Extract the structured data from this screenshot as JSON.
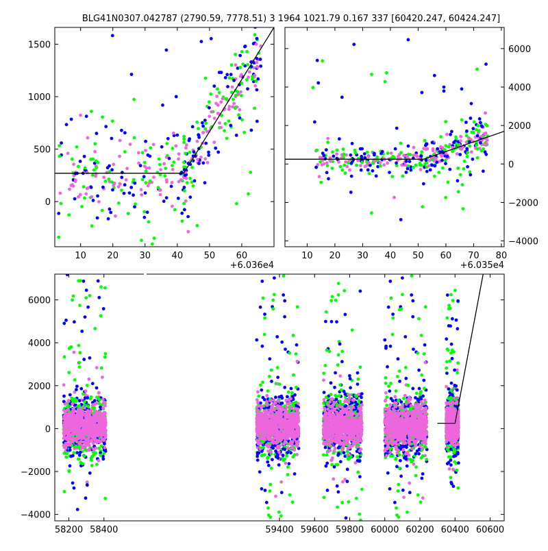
{
  "title": "BLG41N0307.042787 (2790.59, 7778.51)   3 1964 1021.79 0.167 337 [60420.247, 60424.247]",
  "colors": {
    "g": "#00ff00",
    "b": "#0000ff",
    "p": "#ee66dd",
    "model": "#000000"
  },
  "chart_data": [
    {
      "type": "scatter",
      "panel": "top-left",
      "xlim": [
        2,
        70
      ],
      "ylim": [
        -430,
        1660
      ],
      "x_offset_label": "+6.036e4",
      "xticks": [
        10,
        20,
        30,
        40,
        50,
        60
      ],
      "yticks": [
        0,
        500,
        1000,
        1500
      ],
      "ytick_side": "left",
      "model_line": {
        "x": [
          2,
          42,
          70
        ],
        "y": [
          270,
          270,
          1660
        ]
      },
      "scatter_regions": [
        {
          "x": [
            3,
            43
          ],
          "y_center": 230,
          "y_spread": 190,
          "y_outlier_range": [
            -430,
            1600
          ]
        },
        {
          "x": [
            42,
            66
          ],
          "y_trend": [
            [
              42,
              300
            ],
            [
              66,
              1400
            ]
          ],
          "y_spread": 160,
          "y_outlier_range": [
            -300,
            1660
          ]
        }
      ]
    },
    {
      "type": "scatter",
      "panel": "top-right",
      "xlim": [
        2,
        81
      ],
      "ylim": [
        -4300,
        7100
      ],
      "x_offset_label": "+6.035e4",
      "xticks": [
        10,
        20,
        30,
        40,
        50,
        60,
        70,
        80
      ],
      "yticks": [
        -4000,
        -2000,
        0,
        2000,
        4000,
        6000
      ],
      "ytick_side": "right",
      "model_line": {
        "x": [
          2,
          52,
          81
        ],
        "y": [
          250,
          250,
          1700
        ]
      },
      "scatter_regions": [
        {
          "x": [
            12,
            52
          ],
          "y_center": 200,
          "y_spread": 350,
          "y_outlier_range": [
            -3000,
            6600
          ]
        },
        {
          "x": [
            52,
            75
          ],
          "y_trend": [
            [
              52,
              300
            ],
            [
              75,
              1300
            ]
          ],
          "y_spread": 450,
          "y_outlier_range": [
            -2800,
            5400
          ]
        }
      ]
    },
    {
      "type": "scatter",
      "panel": "bottom",
      "xlim": [
        58120,
        60680
      ],
      "ylim": [
        -4300,
        7200
      ],
      "xticks": [
        58200,
        58400,
        59400,
        59600,
        59800,
        60000,
        60200,
        60400,
        60600
      ],
      "yticks": [
        -4000,
        -2000,
        0,
        2000,
        4000,
        6000
      ],
      "ytick_side": "left",
      "axis_break_between": [
        58420,
        59260
      ],
      "model_line": {
        "x": [
          60300,
          60400,
          60560
        ],
        "y": [
          250,
          250,
          7200
        ]
      },
      "seasons": [
        {
          "x": [
            58170,
            58410
          ],
          "y_center": 100,
          "y_spread": 550,
          "y_outlier_range": [
            -4000,
            7200
          ]
        },
        {
          "x": [
            59270,
            59510
          ],
          "y_center": 150,
          "y_spread": 600,
          "y_outlier_range": [
            -4300,
            7200
          ]
        },
        {
          "x": [
            59650,
            59870
          ],
          "y_center": 150,
          "y_spread": 600,
          "y_outlier_range": [
            -4300,
            7200
          ]
        },
        {
          "x": [
            60000,
            60240
          ],
          "y_center": 100,
          "y_spread": 600,
          "y_outlier_range": [
            -4300,
            7200
          ]
        },
        {
          "x": [
            60350,
            60420
          ],
          "y_center": 200,
          "y_spread": 500,
          "y_outlier_range": [
            -2800,
            6600
          ]
        }
      ]
    }
  ]
}
